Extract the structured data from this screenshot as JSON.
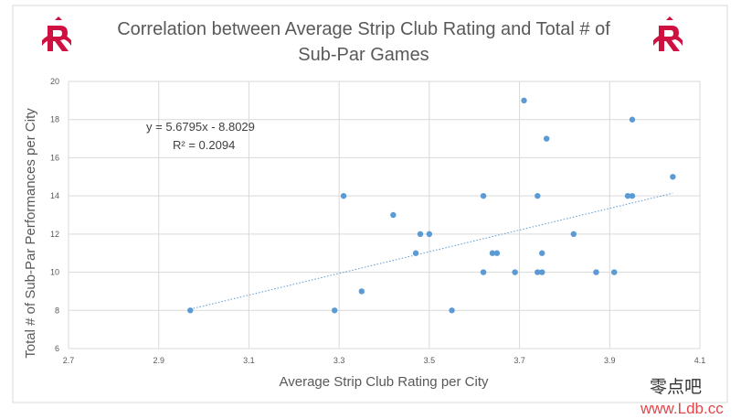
{
  "chart_data": {
    "type": "scatter",
    "title": "Correlation between Average Strip Club Rating and Total # of Sub-Par Games",
    "title_lines": [
      "Correlation between Average Strip Club Rating and Total # of",
      "Sub-Par Games"
    ],
    "xlabel": "Average Strip Club Rating per City",
    "ylabel": "Total # of Sub-Par Performances per City",
    "xlim": [
      2.7,
      4.1
    ],
    "ylim": [
      6,
      20
    ],
    "x_ticks": [
      2.7,
      2.9,
      3.1,
      3.3,
      3.5,
      3.7,
      3.9,
      4.1
    ],
    "y_ticks": [
      6,
      8,
      10,
      12,
      14,
      16,
      18,
      20
    ],
    "x_tick_labels": [
      "2.7",
      "2.9",
      "3.1",
      "3.3",
      "3.5",
      "3.7",
      "3.9",
      "4.1"
    ],
    "y_tick_labels": [
      "6",
      "8",
      "10",
      "12",
      "14",
      "16",
      "18",
      "20"
    ],
    "grid": true,
    "marker_color": "#5b9bd5",
    "trendline_color": "#5b9bd5",
    "trendline": {
      "slope": 5.6795,
      "intercept": -8.8029,
      "x_range": [
        2.97,
        4.04
      ]
    },
    "annotations": [
      "y = 5.6795x - 8.8029",
      "R² = 0.2094"
    ],
    "points": [
      {
        "x": 2.97,
        "y": 8
      },
      {
        "x": 3.29,
        "y": 8
      },
      {
        "x": 3.31,
        "y": 14
      },
      {
        "x": 3.35,
        "y": 9
      },
      {
        "x": 3.42,
        "y": 13
      },
      {
        "x": 3.47,
        "y": 11
      },
      {
        "x": 3.48,
        "y": 12
      },
      {
        "x": 3.5,
        "y": 12
      },
      {
        "x": 3.55,
        "y": 8
      },
      {
        "x": 3.62,
        "y": 14
      },
      {
        "x": 3.62,
        "y": 10
      },
      {
        "x": 3.64,
        "y": 11
      },
      {
        "x": 3.65,
        "y": 11
      },
      {
        "x": 3.69,
        "y": 10
      },
      {
        "x": 3.71,
        "y": 19
      },
      {
        "x": 3.74,
        "y": 14
      },
      {
        "x": 3.74,
        "y": 10
      },
      {
        "x": 3.75,
        "y": 11
      },
      {
        "x": 3.75,
        "y": 10
      },
      {
        "x": 3.76,
        "y": 17
      },
      {
        "x": 3.82,
        "y": 12
      },
      {
        "x": 3.87,
        "y": 10
      },
      {
        "x": 3.91,
        "y": 10
      },
      {
        "x": 3.94,
        "y": 14
      },
      {
        "x": 3.95,
        "y": 14
      },
      {
        "x": 3.95,
        "y": 18
      },
      {
        "x": 4.04,
        "y": 15
      }
    ]
  },
  "logos": [
    {
      "name": "houston-rockets-logo",
      "color": "#ce1141"
    },
    {
      "name": "houston-rockets-logo",
      "color": "#ce1141"
    }
  ],
  "watermark": {
    "chinese_text": "零点吧",
    "url_text": "www.Ldb.cc"
  }
}
